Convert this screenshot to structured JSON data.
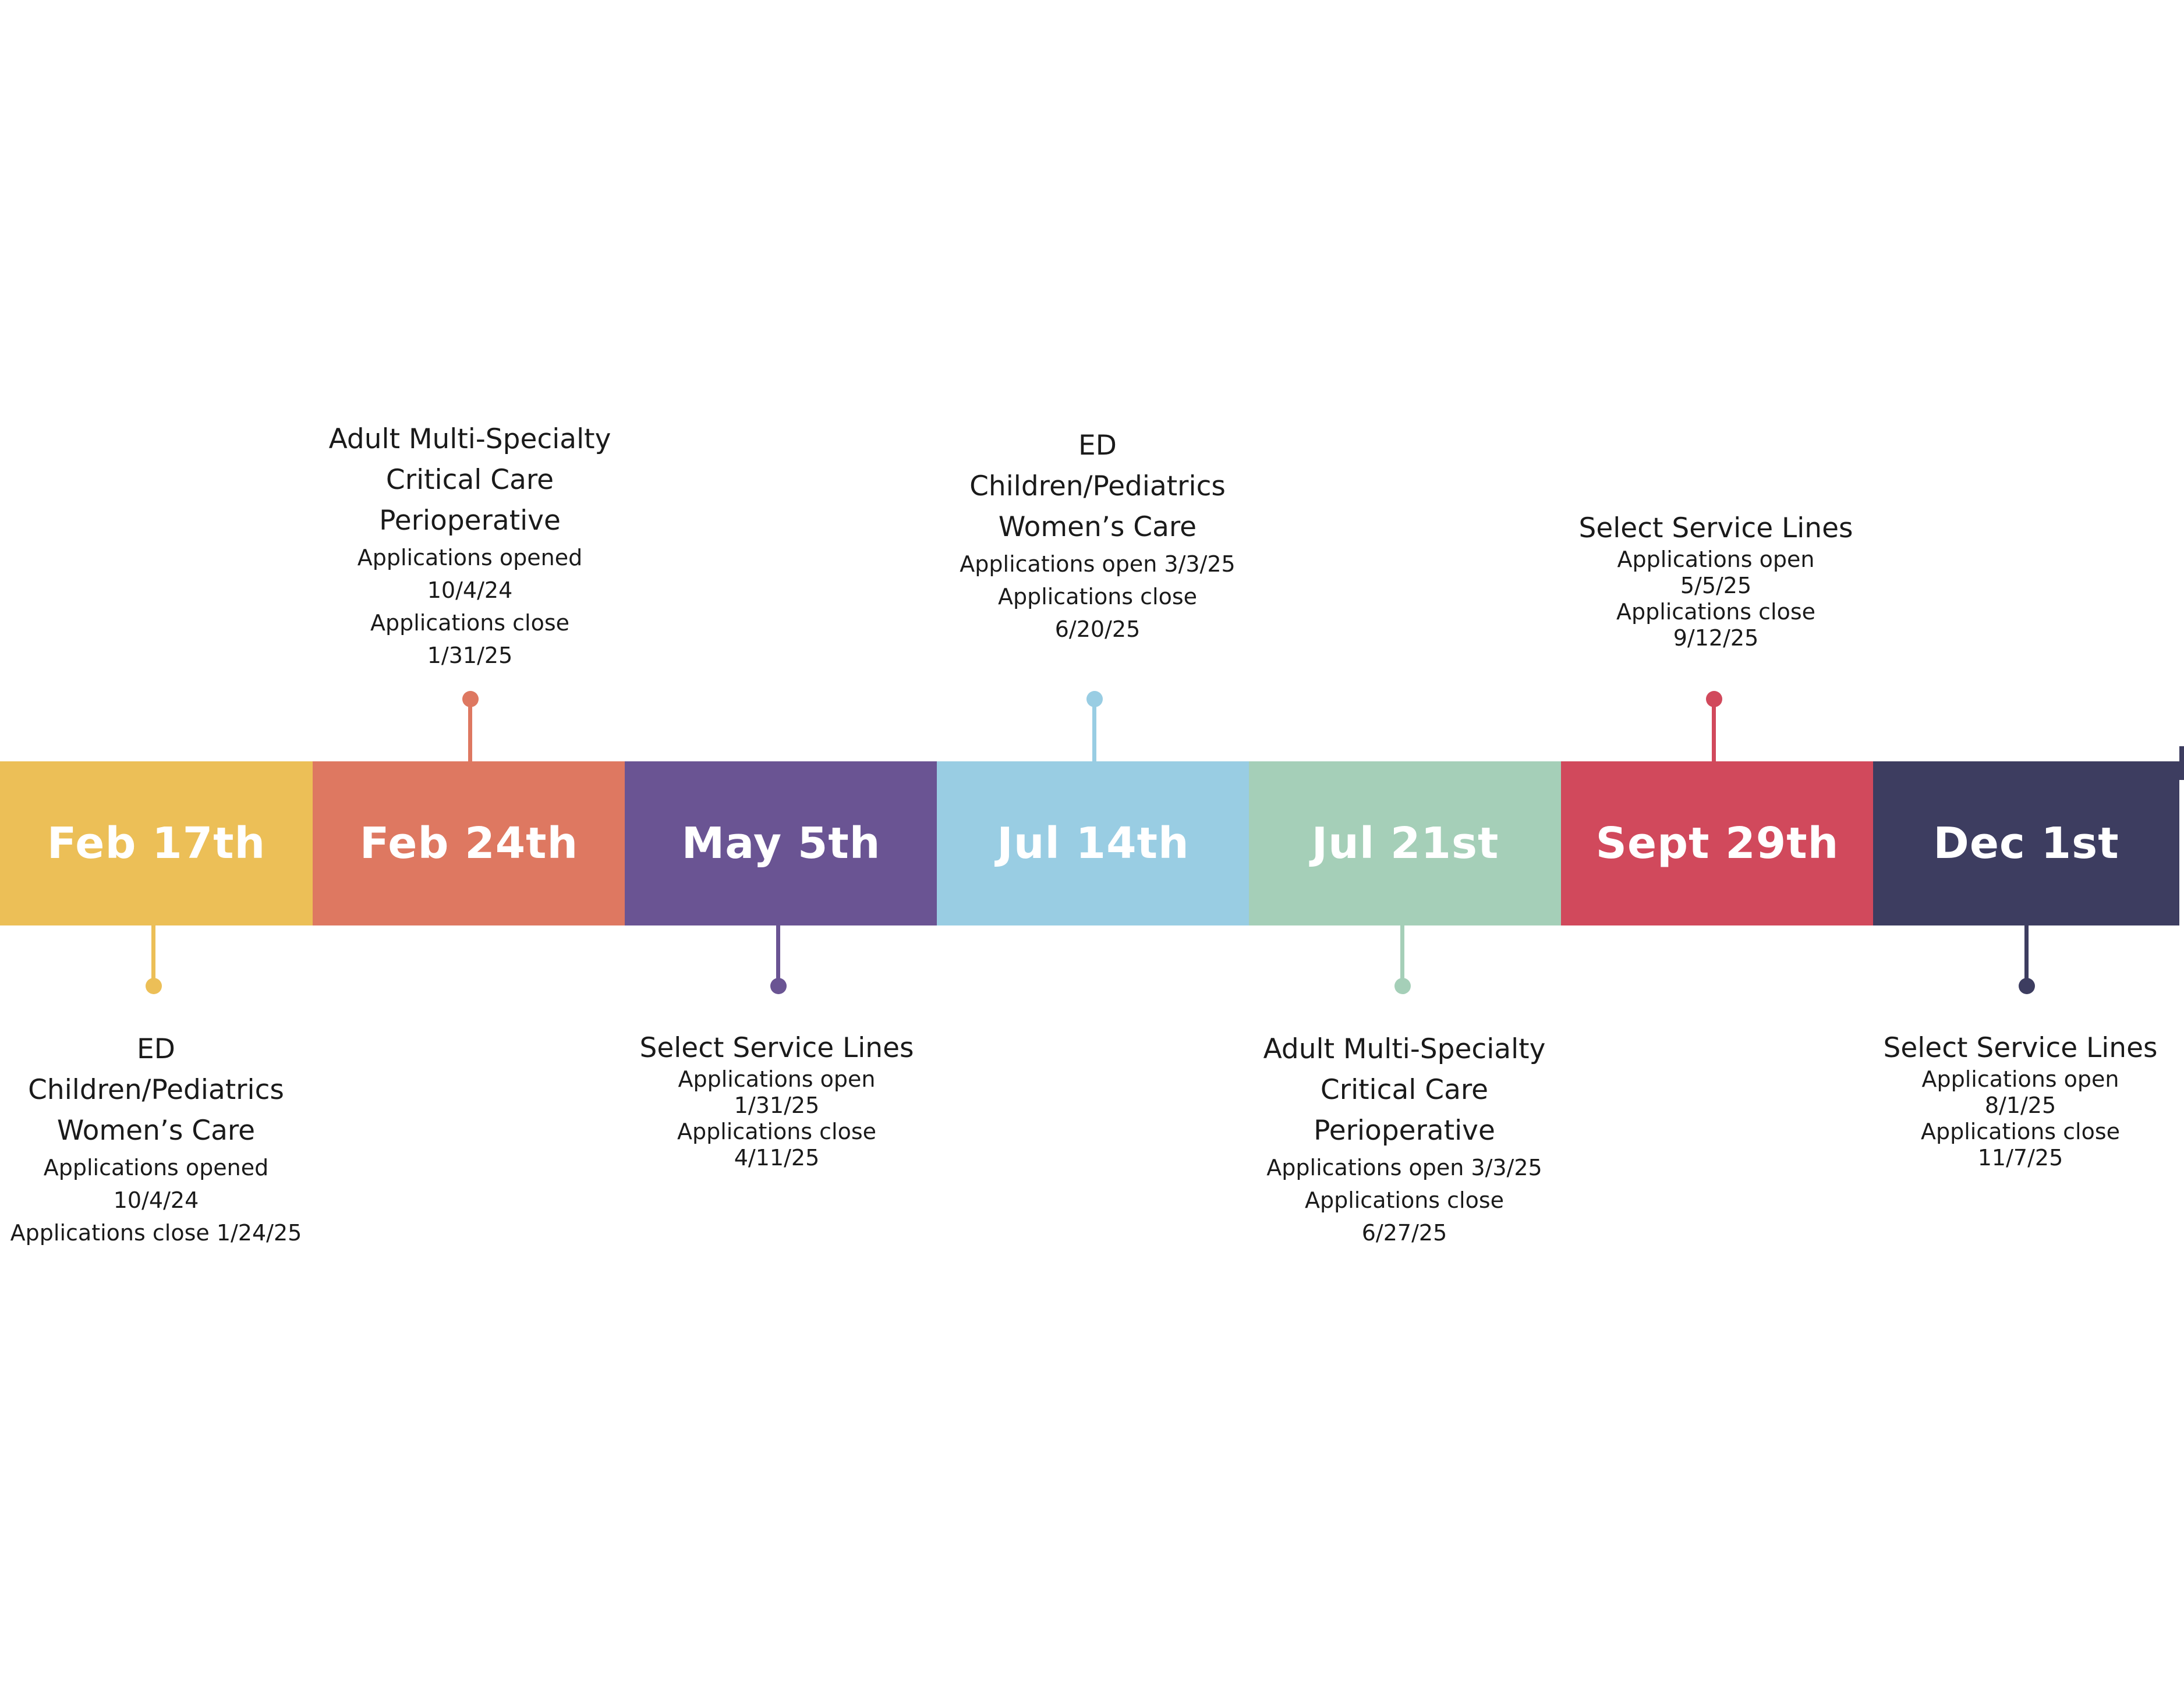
{
  "milestones": [
    {
      "date": "Feb 17th",
      "color": "#ecbf57",
      "position": "below",
      "lines": [
        "ED",
        "Children/Pediatrics",
        "Women’s Care"
      ],
      "details": [
        "Applications opened",
        "10/4/24",
        "Applications close 1/24/25"
      ]
    },
    {
      "date": "Feb 24th",
      "color": "#de7861",
      "position": "above",
      "lines": [
        "Adult Multi-Specialty",
        "Critical Care",
        "Perioperative"
      ],
      "details": [
        "Applications opened",
        "10/4/24",
        "Applications close",
        "1/31/25"
      ]
    },
    {
      "date": "May 5th",
      "color": "#6a5493",
      "position": "below",
      "lines": [
        "Select Service Lines"
      ],
      "details": [
        "Applications open",
        "1/31/25",
        "Applications close",
        "4/11/25"
      ]
    },
    {
      "date": "Jul 14th",
      "color": "#99cde3",
      "position": "above",
      "lines": [
        "ED",
        "Children/Pediatrics",
        "Women’s Care"
      ],
      "details": [
        "Applications open 3/3/25",
        "Applications close",
        "6/20/25"
      ]
    },
    {
      "date": "Jul 21st",
      "color": "#a5cfb8",
      "position": "below",
      "lines": [
        "Adult Multi-Specialty",
        "Critical Care",
        "Perioperative"
      ],
      "details": [
        "Applications open 3/3/25",
        "Applications close",
        "6/27/25"
      ]
    },
    {
      "date": "Sept 29th",
      "color": "#d1495c",
      "position": "above",
      "lines": [
        "Select Service Lines"
      ],
      "details": [
        "Applications open",
        "5/5/25",
        "Applications close",
        "9/12/25"
      ]
    },
    {
      "date": "Dec 1st",
      "color": "#3d3d60",
      "position": "below",
      "lines": [
        "Select Service Lines"
      ],
      "details": [
        "Applications open",
        "8/1/25",
        "Applications close",
        "11/7/25"
      ]
    }
  ]
}
